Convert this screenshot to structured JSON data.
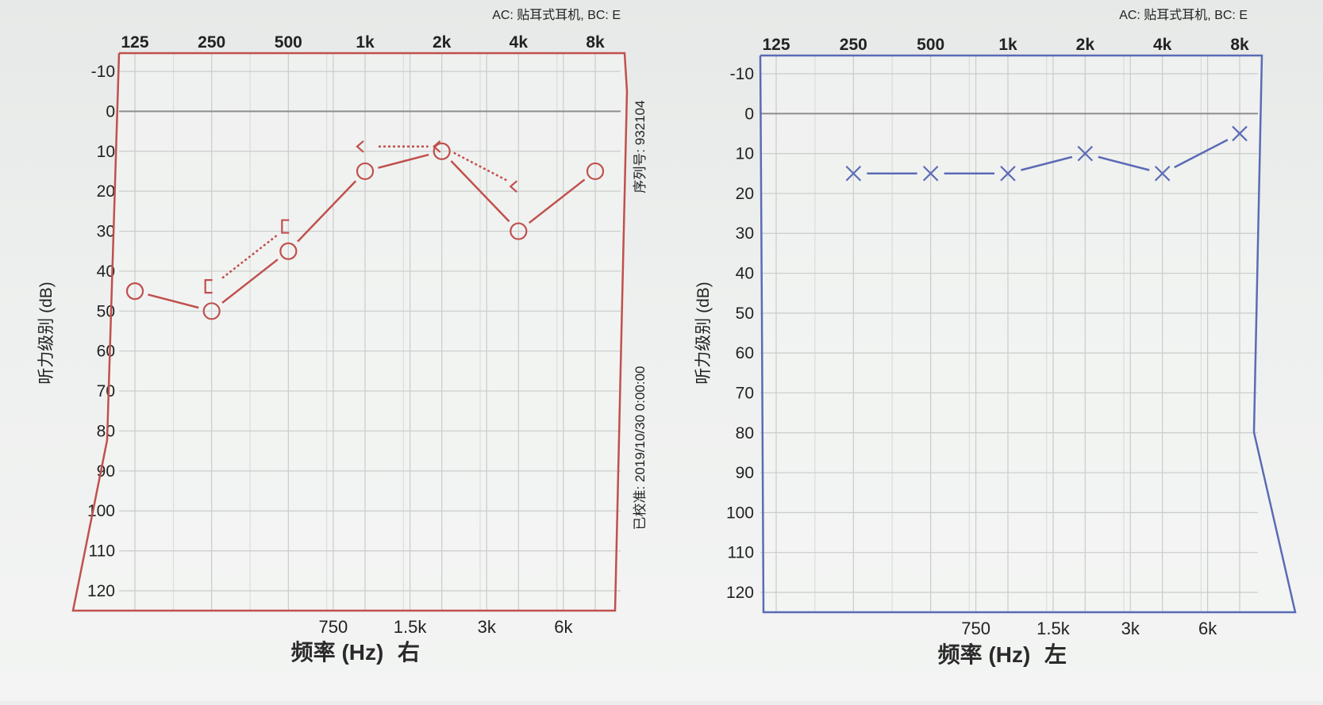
{
  "chart_data": [
    {
      "type": "line",
      "panel": "right-ear",
      "header": "AC: 贴耳式耳机, BC: E",
      "xlabel": "频率 (Hz)",
      "ear_label": "右",
      "ylabel": "听力级别 (dB)",
      "x_scale": "log",
      "x_ticks_top": [
        "125",
        "250",
        "500",
        "1k",
        "2k",
        "4k",
        "8k"
      ],
      "x_ticks_bottom": [
        "750",
        "1.5k",
        "3k",
        "6k"
      ],
      "y_ticks": [
        "-10",
        "0",
        "10",
        "20",
        "30",
        "40",
        "50",
        "60",
        "70",
        "80",
        "90",
        "100",
        "110",
        "120"
      ],
      "ylim": [
        -10,
        120
      ],
      "y_inverted": true,
      "grid": true,
      "series": [
        {
          "marker": "circle",
          "line": "solid",
          "color": "#c0504d",
          "x": [
            125,
            250,
            500,
            1000,
            2000,
            4000,
            8000
          ],
          "values": [
            45,
            50,
            35,
            15,
            10,
            30,
            15
          ]
        },
        {
          "marker": "bracket",
          "line": "dotted",
          "color": "#c0504d",
          "x": [
            250,
            500
          ],
          "values": [
            45,
            30
          ]
        },
        {
          "marker": "angle",
          "line": "dotted",
          "color": "#c0504d",
          "x": [
            1000,
            2000,
            4000
          ],
          "values": [
            10,
            10,
            20
          ]
        }
      ],
      "side_texts": [
        "序列号: 932104",
        "已校准: 2019/10/30 0:00:00"
      ]
    },
    {
      "type": "line",
      "panel": "left-ear",
      "header": "AC: 贴耳式耳机, BC: E",
      "xlabel": "频率 (Hz)",
      "ear_label": "左",
      "ylabel": "听力级别 (dB)",
      "x_scale": "log",
      "x_ticks_top": [
        "125",
        "250",
        "500",
        "1k",
        "2k",
        "4k",
        "8k"
      ],
      "x_ticks_bottom": [
        "750",
        "1.5k",
        "3k",
        "6k"
      ],
      "y_ticks": [
        "-10",
        "0",
        "10",
        "20",
        "30",
        "40",
        "50",
        "60",
        "70",
        "80",
        "90",
        "100",
        "110",
        "120"
      ],
      "ylim": [
        -10,
        120
      ],
      "y_inverted": true,
      "grid": true,
      "series": [
        {
          "marker": "cross",
          "line": "solid",
          "color": "#5b6bb5",
          "x": [
            250,
            500,
            1000,
            2000,
            4000,
            8000
          ],
          "values": [
            15,
            15,
            15,
            10,
            15,
            5
          ]
        }
      ]
    }
  ]
}
